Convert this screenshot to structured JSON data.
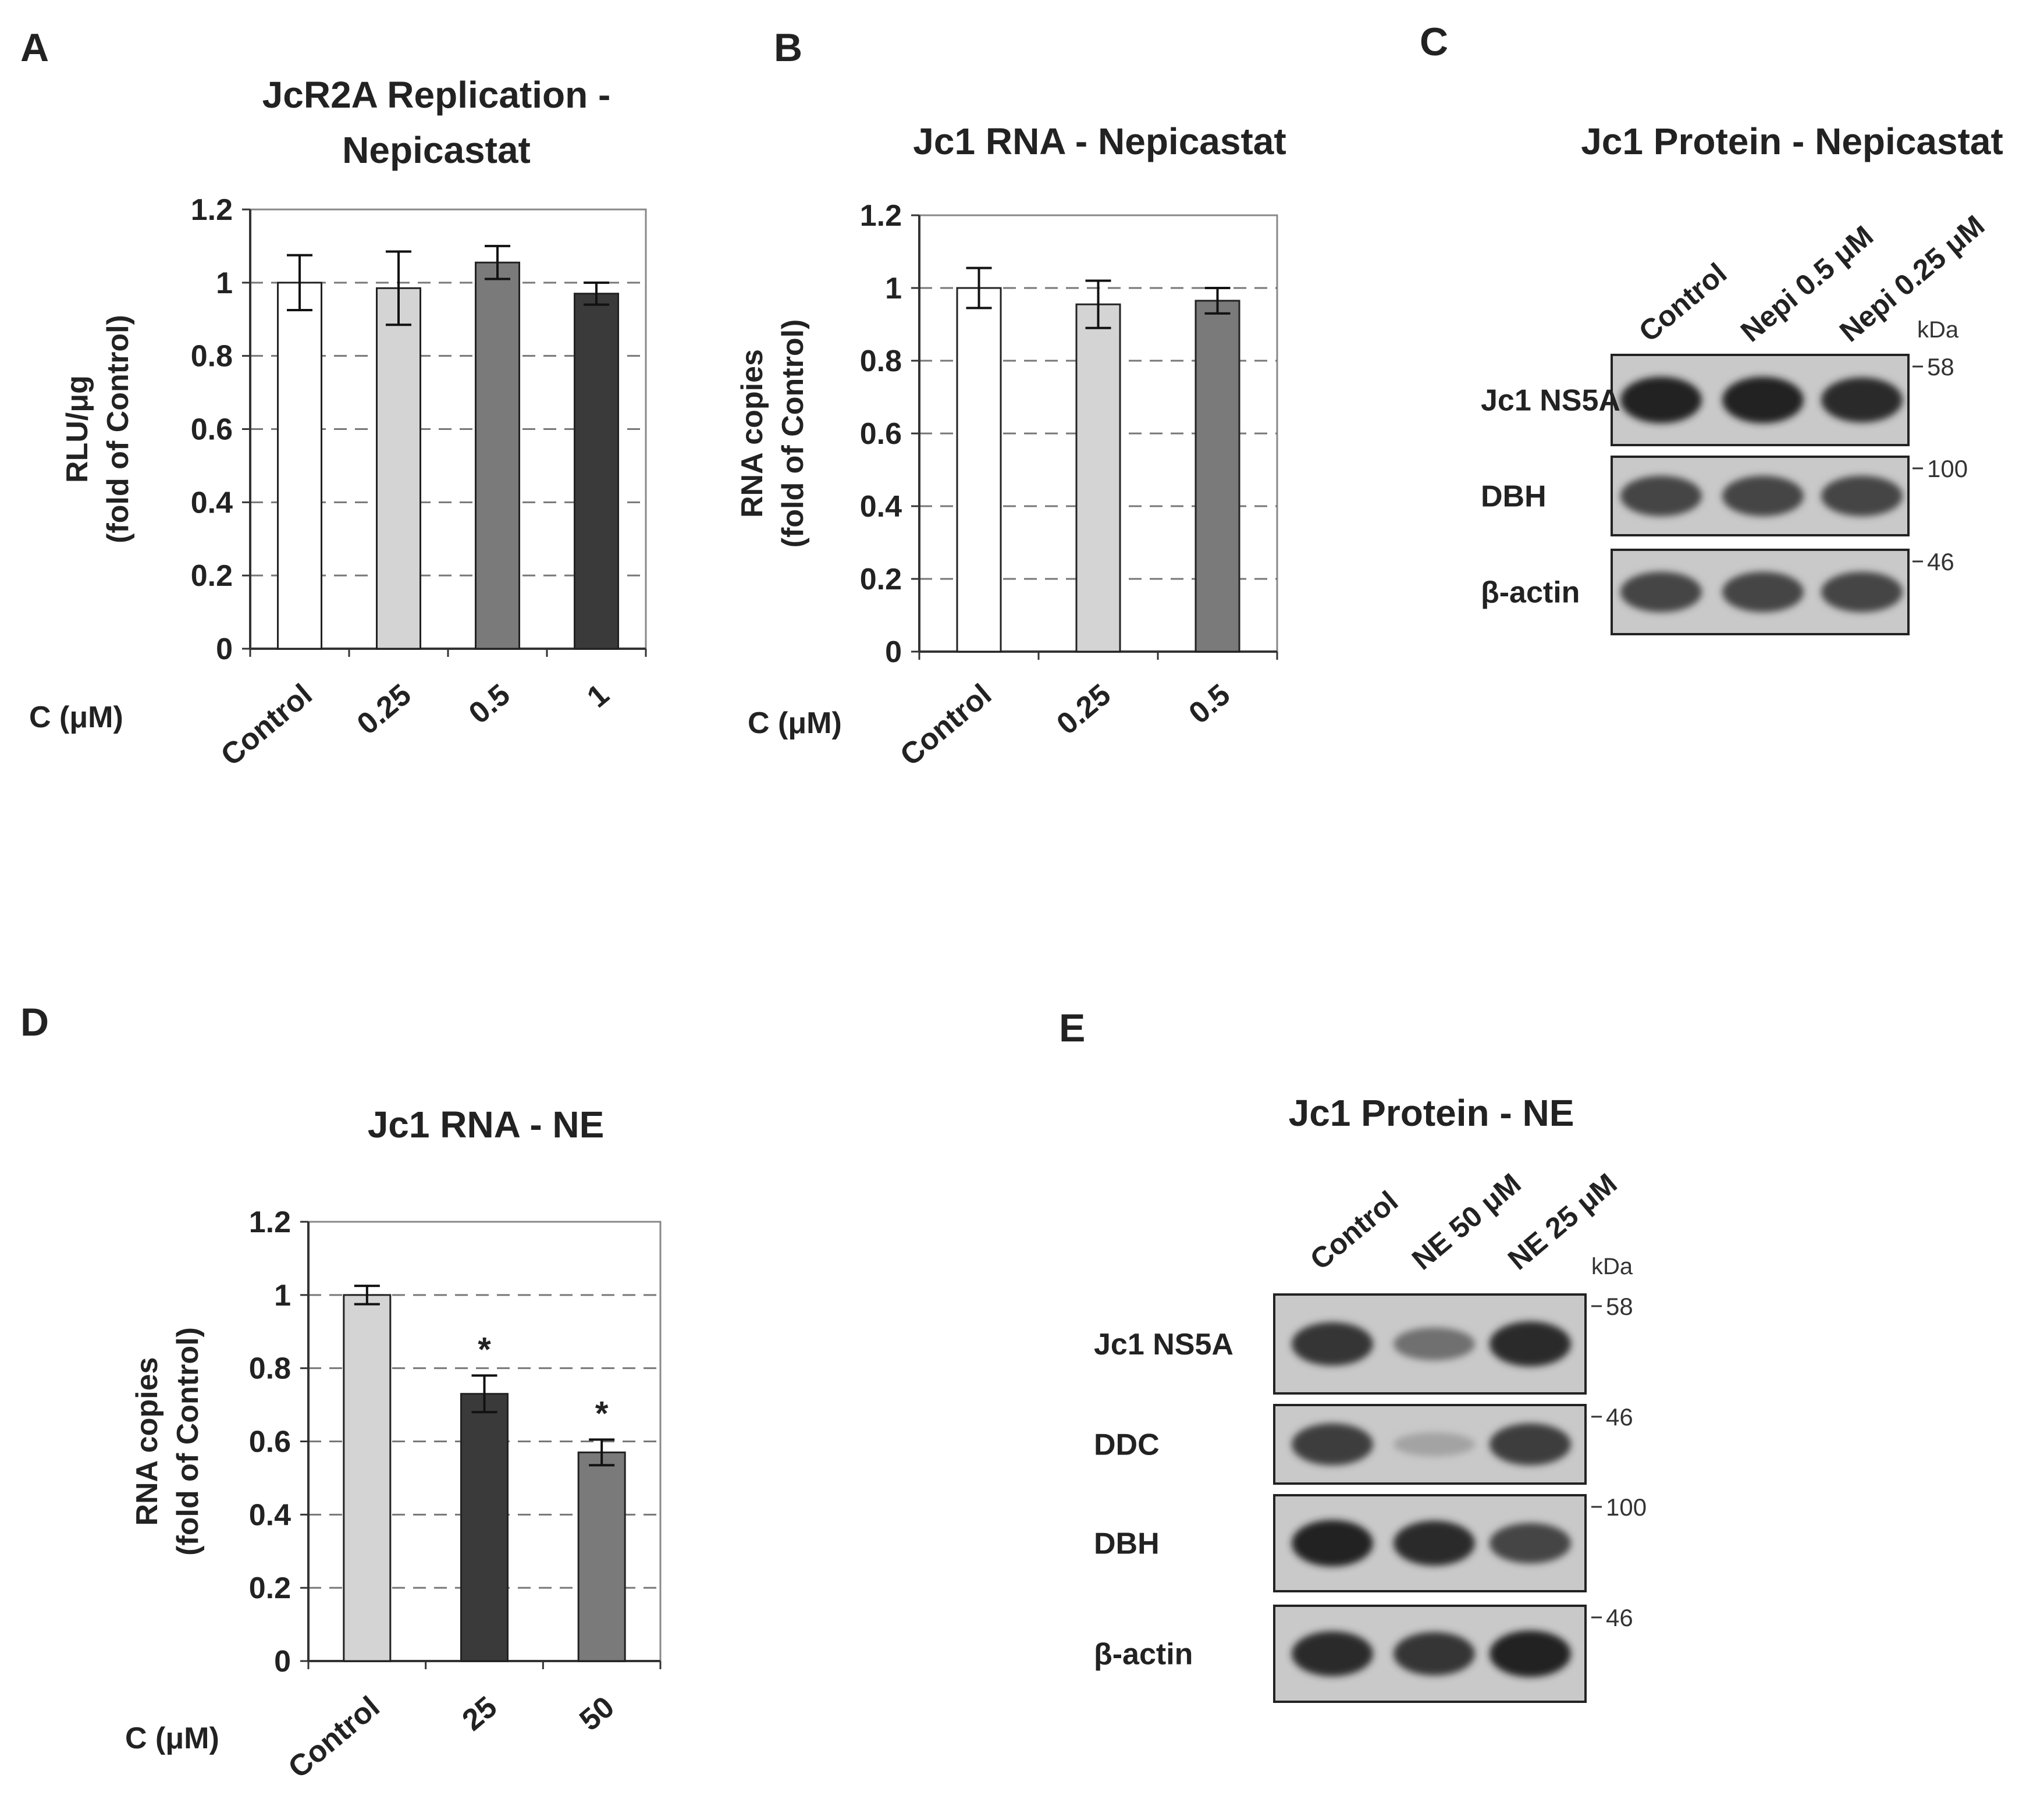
{
  "chart_data": [
    {
      "panel": "A",
      "type": "bar",
      "title": [
        "JcR2A Replication -",
        "Nepicastat"
      ],
      "ylabel": [
        "RLU/μg",
        "(fold of Control)"
      ],
      "xlabel": "C (μM)",
      "categories": [
        "Control",
        "0.25",
        "0.5",
        "1"
      ],
      "values": [
        1.0,
        0.985,
        1.055,
        0.97
      ],
      "errors": [
        0.075,
        0.1,
        0.045,
        0.03
      ],
      "colors": [
        "#ffffff",
        "#d4d4d4",
        "#7a7a7a",
        "#3a3a3a"
      ],
      "significance": [
        "",
        "",
        "",
        ""
      ],
      "ylim": [
        0,
        1.2
      ],
      "yticks": [
        "0",
        "0.2",
        "0.4",
        "0.6",
        "0.8",
        "1",
        "1.2"
      ],
      "grid": true
    },
    {
      "panel": "B",
      "type": "bar",
      "title": [
        "Jc1  RNA - Nepicastat"
      ],
      "ylabel": [
        "RNA copies",
        "(fold of Control)"
      ],
      "xlabel": "C (μM)",
      "categories": [
        "Control",
        "0.25",
        "0.5"
      ],
      "values": [
        1.0,
        0.955,
        0.965
      ],
      "errors": [
        0.055,
        0.065,
        0.035
      ],
      "colors": [
        "#ffffff",
        "#d4d4d4",
        "#7a7a7a"
      ],
      "significance": [
        "",
        "",
        ""
      ],
      "ylim": [
        0,
        1.2
      ],
      "yticks": [
        "0",
        "0.2",
        "0.4",
        "0.6",
        "0.8",
        "1",
        "1.2"
      ],
      "grid": true
    },
    {
      "panel": "D",
      "type": "bar",
      "title": [
        "Jc1 RNA - NE"
      ],
      "ylabel": [
        "RNA copies",
        "(fold of Control)"
      ],
      "xlabel": "C (μM)",
      "categories": [
        "Control",
        "25",
        "50"
      ],
      "values": [
        1.0,
        0.73,
        0.57
      ],
      "errors": [
        0.025,
        0.05,
        0.035
      ],
      "colors": [
        "#d4d4d4",
        "#3a3a3a",
        "#7a7a7a"
      ],
      "significance": [
        "",
        "*",
        "*"
      ],
      "ylim": [
        0,
        1.2
      ],
      "yticks": [
        "0",
        "0.2",
        "0.4",
        "0.6",
        "0.8",
        "1",
        "1.2"
      ],
      "grid": true
    }
  ],
  "blots": [
    {
      "panel": "C",
      "title": "Jc1 Protein - Nepicastat",
      "lanes": [
        "Control",
        "Nepi 0.5 μM",
        "Nepi 0.25 μM"
      ],
      "kda_label": "kDa",
      "rows": [
        {
          "name": "Jc1 NS5A",
          "marker": "58",
          "intensity": [
            1.0,
            1.0,
            0.95
          ]
        },
        {
          "name": "DBH",
          "marker": "100",
          "intensity": [
            0.8,
            0.8,
            0.8
          ]
        },
        {
          "name": "β-actin",
          "marker": "46",
          "intensity": [
            0.8,
            0.8,
            0.8
          ]
        }
      ]
    },
    {
      "panel": "E",
      "title": "Jc1 Protein - NE",
      "lanes": [
        "Control",
        "NE 50 μM",
        "NE 25 μM"
      ],
      "kda_label": "kDa",
      "rows": [
        {
          "name": "Jc1 NS5A",
          "marker": "58",
          "intensity": [
            0.9,
            0.55,
            0.95
          ]
        },
        {
          "name": "DDC",
          "marker": "46",
          "intensity": [
            0.85,
            0.25,
            0.85
          ]
        },
        {
          "name": "DBH",
          "marker": "100",
          "intensity": [
            1.0,
            0.95,
            0.8
          ]
        },
        {
          "name": "β-actin",
          "marker": "46",
          "intensity": [
            0.95,
            0.9,
            1.0
          ]
        }
      ]
    }
  ],
  "panel_letters": [
    "A",
    "B",
    "C",
    "D",
    "E"
  ]
}
